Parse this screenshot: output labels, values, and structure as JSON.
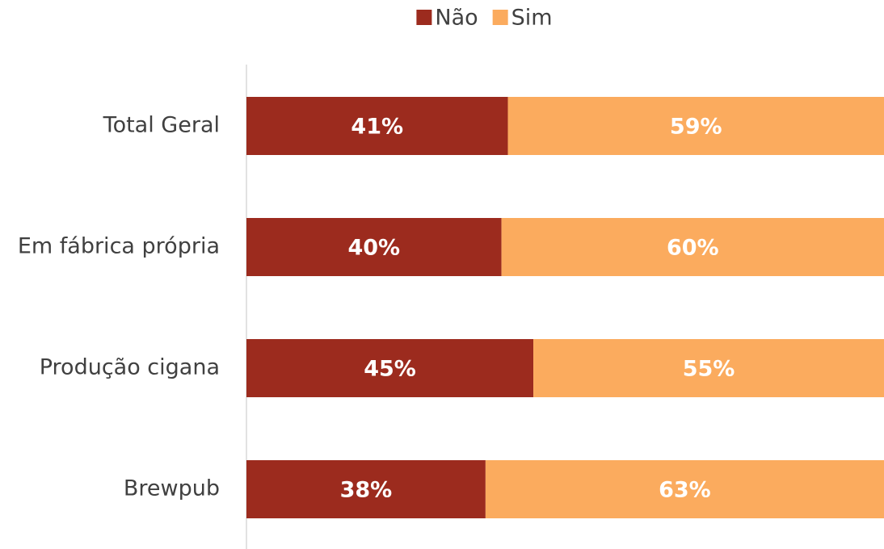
{
  "chart_data": {
    "type": "stacked_bar_horizontal",
    "categories": [
      "Total Geral",
      "Em fábrica própria",
      "Produção cigana",
      "Brewpub"
    ],
    "series": [
      {
        "name": "Não",
        "color": "#9c2b1e",
        "values": [
          41,
          40,
          45,
          37.5
        ],
        "value_labels": [
          "41%",
          "40%",
          "45%",
          "38%"
        ]
      },
      {
        "name": "Sim",
        "color": "#fbab5e",
        "values": [
          59,
          60,
          55,
          62.5
        ],
        "value_labels": [
          "59%",
          "60%",
          "55%",
          "63%"
        ]
      }
    ],
    "xlim": [
      0,
      100
    ],
    "legend": "top"
  }
}
